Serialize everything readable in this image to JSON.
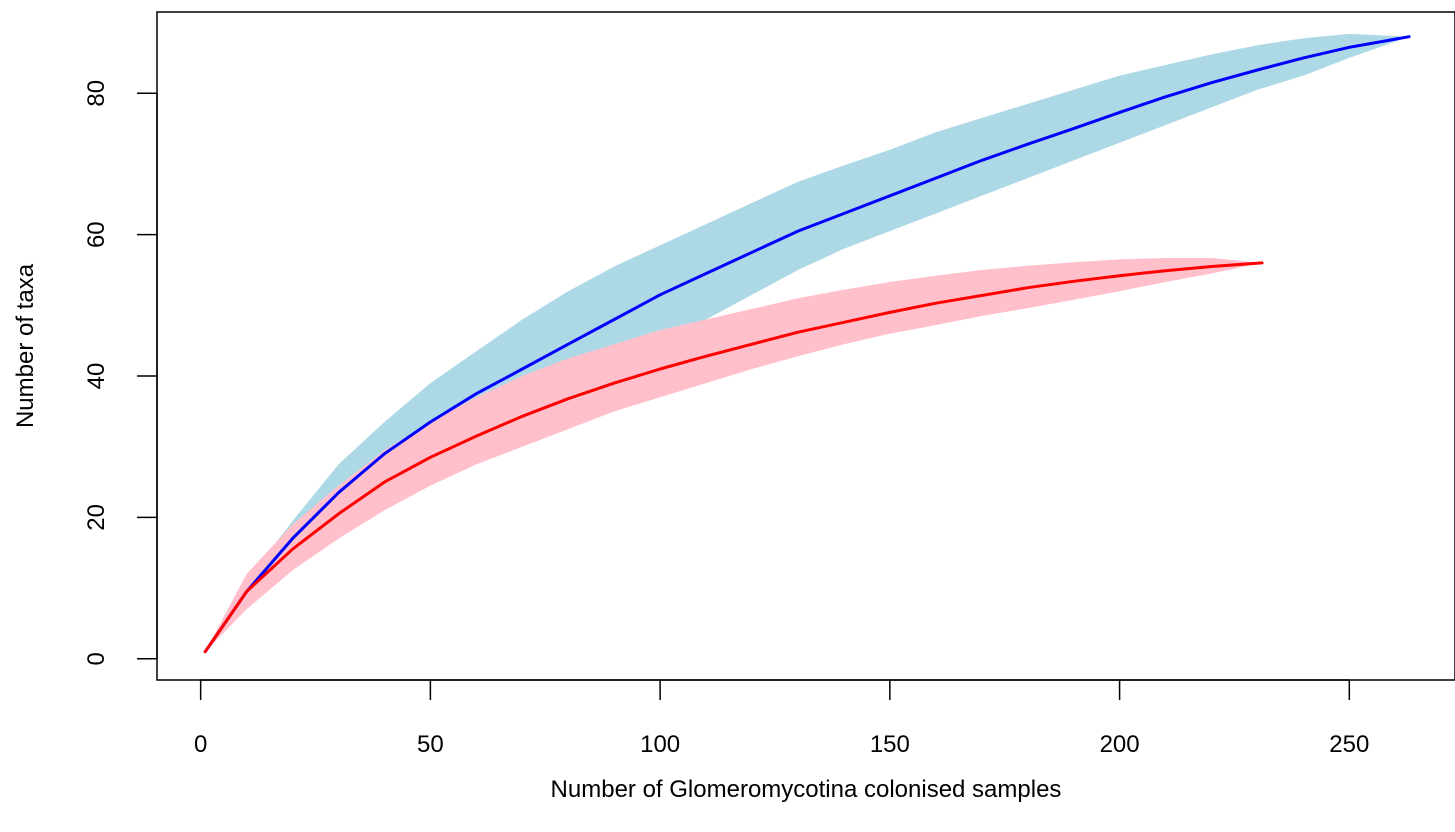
{
  "chart_data": {
    "type": "area",
    "xlabel": "Number of Glomeromycotina colonised samples",
    "ylabel": "Number of taxa",
    "xlim": [
      -9.5,
      273
    ],
    "ylim": [
      -3,
      91.5
    ],
    "xticks": [
      0,
      50,
      100,
      150,
      200,
      250
    ],
    "yticks": [
      0,
      20,
      40,
      60,
      80
    ],
    "grid": false,
    "legend": "none",
    "series": [
      {
        "line_color": "#0000ff",
        "band_color": "#add8e6",
        "x": [
          1,
          10,
          20,
          30,
          40,
          50,
          60,
          70,
          80,
          90,
          100,
          110,
          120,
          130,
          140,
          150,
          160,
          170,
          180,
          190,
          200,
          210,
          220,
          230,
          240,
          250,
          263
        ],
        "y": [
          1,
          9.5,
          17,
          23.5,
          29,
          33.5,
          37.5,
          41,
          44.5,
          48,
          51.5,
          54.5,
          57.5,
          60.5,
          63,
          65.5,
          68,
          70.5,
          72.8,
          75,
          77.3,
          79.5,
          81.5,
          83.3,
          85,
          86.5,
          88
        ],
        "lower": [
          1,
          7.5,
          13.5,
          19,
          23.5,
          27.5,
          31,
          34.5,
          38,
          41.5,
          45,
          48,
          51.5,
          55,
          58,
          60.5,
          63,
          65.5,
          68,
          70.5,
          73,
          75.5,
          78,
          80.5,
          82.5,
          85,
          88
        ],
        "upper": [
          1,
          11,
          19.5,
          27.5,
          33.5,
          39,
          43.5,
          48,
          52,
          55.5,
          58.5,
          61.5,
          64.5,
          67.5,
          69.8,
          72,
          74.5,
          76.5,
          78.5,
          80.5,
          82.5,
          84,
          85.5,
          86.8,
          87.8,
          88.4,
          88
        ]
      },
      {
        "line_color": "#ff0000",
        "band_color": "#ffc0cb",
        "x": [
          1,
          10,
          20,
          30,
          40,
          50,
          60,
          70,
          80,
          90,
          100,
          110,
          120,
          130,
          140,
          150,
          160,
          170,
          180,
          190,
          200,
          210,
          220,
          231
        ],
        "y": [
          1,
          9.5,
          15.5,
          20.5,
          25,
          28.5,
          31.5,
          34.3,
          36.8,
          39,
          41,
          42.8,
          44.5,
          46.2,
          47.6,
          49,
          50.3,
          51.4,
          52.5,
          53.4,
          54.2,
          54.9,
          55.5,
          56
        ],
        "lower": [
          1,
          7,
          12.5,
          17,
          21,
          24.5,
          27.5,
          30,
          32.5,
          35,
          37,
          39,
          41,
          42.8,
          44.5,
          46,
          47.2,
          48.5,
          49.6,
          50.8,
          52,
          53.3,
          54.5,
          56
        ],
        "upper": [
          1,
          12,
          19,
          24.5,
          29.5,
          33.5,
          37,
          40,
          42.5,
          44.5,
          46.5,
          48,
          49.5,
          51,
          52.2,
          53.3,
          54.2,
          55,
          55.6,
          56.1,
          56.5,
          56.7,
          56.7,
          56
        ]
      }
    ]
  }
}
